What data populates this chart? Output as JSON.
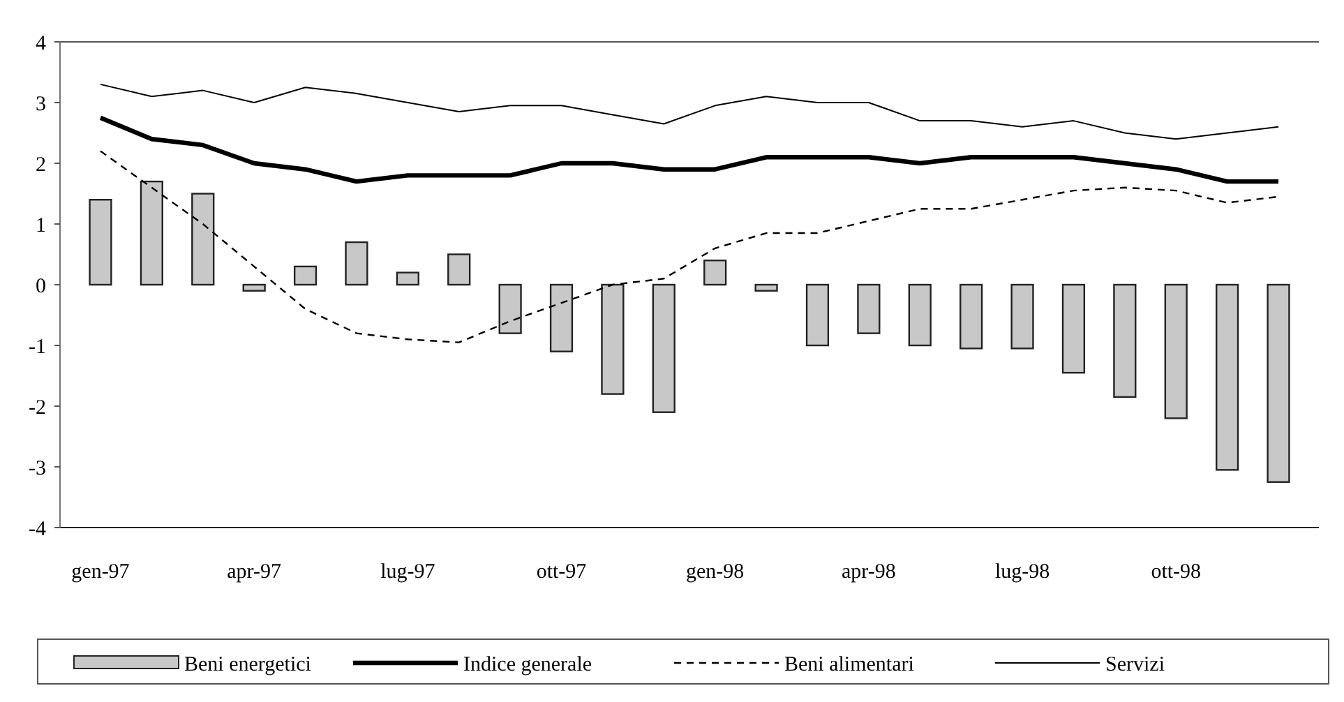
{
  "chart_data": {
    "type": "bar",
    "categories": [
      "gen-97",
      null,
      null,
      "apr-97",
      null,
      null,
      "lug-97",
      null,
      null,
      "ott-97",
      null,
      null,
      "gen-98",
      null,
      null,
      "apr-98",
      null,
      null,
      "lug-98",
      null,
      null,
      "ott-98",
      null,
      null
    ],
    "ylim": [
      -4,
      4
    ],
    "yticks": [
      -4,
      -3,
      -2,
      -1,
      0,
      1,
      2,
      3,
      4
    ],
    "grid": false,
    "legend": "bottom",
    "series": [
      {
        "name": "Beni energetici",
        "color": "#c8c8c8",
        "values": [
          1.4,
          1.7,
          1.5,
          -0.1,
          0.3,
          0.7,
          0.2,
          0.5,
          -0.8,
          -1.1,
          -1.8,
          -2.1,
          0.4,
          -0.1,
          -1.0,
          -0.8,
          -1.0,
          -1.05,
          -1.05,
          -1.45,
          -1.85,
          -2.2,
          -3.05,
          -3.25
        ]
      },
      {
        "name": "Indice generale",
        "type": "line",
        "line_style": "solid",
        "color": "#000000",
        "values": [
          2.75,
          2.4,
          2.3,
          2.0,
          1.9,
          1.7,
          1.8,
          1.8,
          1.8,
          2.0,
          2.0,
          1.9,
          1.9,
          2.1,
          2.1,
          2.1,
          2.0,
          2.1,
          2.1,
          2.1,
          2.0,
          1.9,
          1.7,
          1.7
        ]
      },
      {
        "name": "Beni alimentari",
        "type": "line",
        "line_style": "dashed",
        "color": "#000000",
        "values": [
          2.2,
          1.6,
          1.0,
          0.3,
          -0.4,
          -0.8,
          -0.9,
          -0.95,
          -0.6,
          -0.3,
          0,
          0.1,
          0.6,
          0.85,
          0.85,
          1.05,
          1.25,
          1.25,
          1.4,
          1.55,
          1.6,
          1.55,
          1.35,
          1.45
        ]
      },
      {
        "name": "Servizi",
        "type": "line",
        "line_style": "solid",
        "color": "#000000",
        "values": [
          3.3,
          3.1,
          3.2,
          3.0,
          3.25,
          3.15,
          3.0,
          2.85,
          2.95,
          2.95,
          2.8,
          2.65,
          2.95,
          3.1,
          3.0,
          3.0,
          2.7,
          2.7,
          2.6,
          2.7,
          2.5,
          2.4,
          2.5,
          2.6
        ]
      }
    ]
  }
}
